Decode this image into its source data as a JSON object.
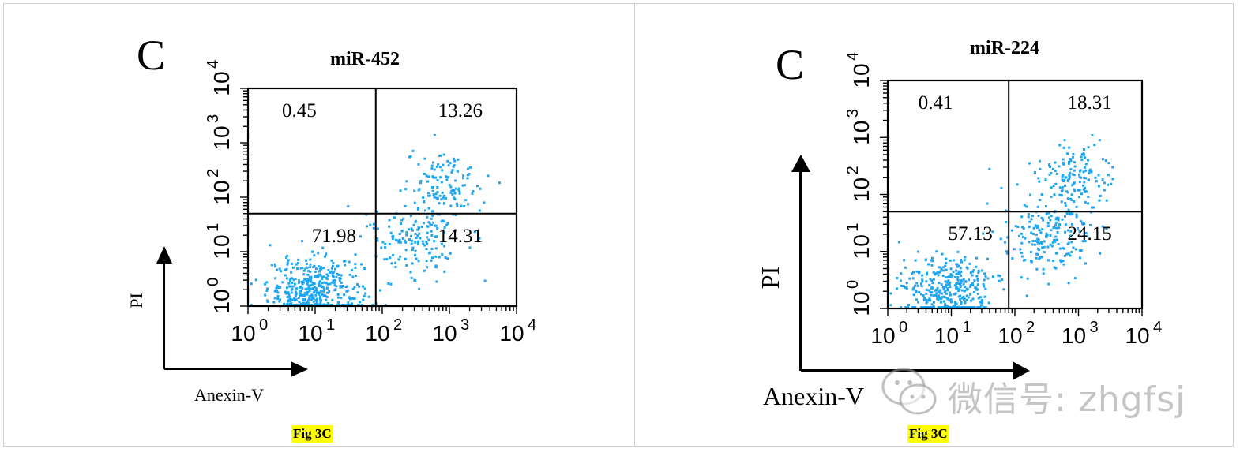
{
  "captions": [
    "Fig 3C",
    "Fig 3C"
  ],
  "watermark": {
    "text": "微信号: zhgfsj",
    "icon": "wechat-icon"
  },
  "colors": {
    "points": "#1fa6f0",
    "axes": "#000000",
    "caption_bg": "#ffff00"
  },
  "chart_data": [
    {
      "type": "scatter",
      "panel_letter": "C",
      "title": "miR-452",
      "xlabel": "Anexin-V",
      "ylabel": "PI",
      "x_scale": "log",
      "y_scale": "log",
      "xlim": [
        1,
        10000
      ],
      "ylim": [
        1,
        10000
      ],
      "x_ticks": [
        1,
        10,
        100,
        1000,
        10000
      ],
      "y_ticks": [
        1,
        10,
        100,
        1000,
        10000
      ],
      "quadrant_gate": {
        "x": 80,
        "y": 50
      },
      "quadrants": {
        "upper_left": "0.45",
        "upper_right": "13.26",
        "lower_left": "71.98",
        "lower_right": "14.31"
      },
      "clusters": [
        {
          "region": "lower_left",
          "center": [
            10,
            2
          ],
          "spread": [
            0.35,
            0.3
          ],
          "count": 420
        },
        {
          "region": "lower_right",
          "center": [
            320,
            20
          ],
          "spread": [
            0.35,
            0.4
          ],
          "count": 170
        },
        {
          "region": "upper_right",
          "center": [
            900,
            200
          ],
          "spread": [
            0.3,
            0.3
          ],
          "count": 110
        }
      ]
    },
    {
      "type": "scatter",
      "panel_letter": "C",
      "title": "miR-224",
      "xlabel": "Anexin-V",
      "ylabel": "PI",
      "x_scale": "log",
      "y_scale": "log",
      "xlim": [
        1,
        10000
      ],
      "ylim": [
        1,
        10000
      ],
      "x_ticks": [
        1,
        10,
        100,
        1000,
        10000
      ],
      "y_ticks": [
        1,
        10,
        100,
        1000,
        10000
      ],
      "quadrant_gate": {
        "x": 80,
        "y": 50
      },
      "quadrants": {
        "upper_left": "0.41",
        "upper_right": "18.31",
        "lower_left": "57.13",
        "lower_right": "24.15"
      },
      "clusters": [
        {
          "region": "lower_left",
          "center": [
            9,
            2
          ],
          "spread": [
            0.35,
            0.3
          ],
          "count": 360
        },
        {
          "region": "lower_right",
          "center": [
            330,
            20
          ],
          "spread": [
            0.35,
            0.4
          ],
          "count": 210
        },
        {
          "region": "upper_right",
          "center": [
            900,
            200
          ],
          "spread": [
            0.3,
            0.3
          ],
          "count": 130
        }
      ]
    }
  ]
}
